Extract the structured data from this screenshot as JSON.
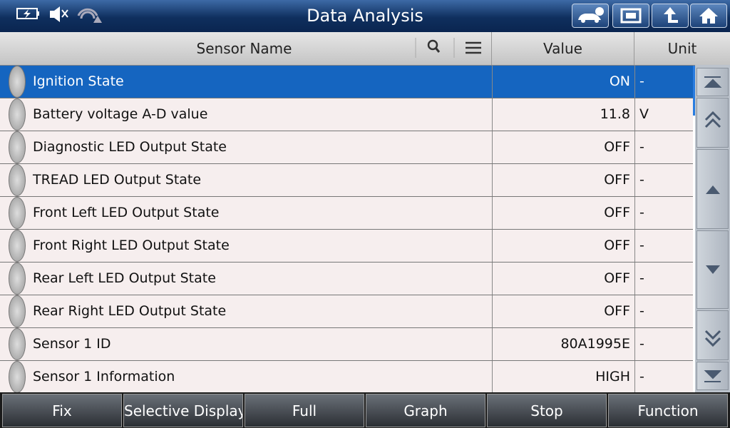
{
  "header": {
    "title": "Data Analysis"
  },
  "table": {
    "columns": [
      "Sensor Name",
      "Value",
      "Unit"
    ],
    "rows": [
      [
        "Ignition State",
        "ON",
        "-"
      ],
      [
        "Battery voltage A-D value",
        "11.8",
        "V"
      ],
      [
        "Diagnostic LED Output State",
        "OFF",
        "-"
      ],
      [
        "TREAD LED Output State",
        "OFF",
        "-"
      ],
      [
        "Front Left LED Output State",
        "OFF",
        "-"
      ],
      [
        "Front Right LED Output State",
        "OFF",
        "-"
      ],
      [
        "Rear Left LED Output State",
        "OFF",
        "-"
      ],
      [
        "Rear Right LED Output State",
        "OFF",
        "-"
      ],
      [
        "Sensor 1 ID",
        "80A1995E",
        "-"
      ],
      [
        "Sensor 1 Information",
        "HIGH",
        "-"
      ]
    ]
  },
  "footer": {
    "buttons": [
      "Fix",
      "Selective Display",
      "Full",
      "Graph",
      "Stop",
      "Function"
    ]
  }
}
